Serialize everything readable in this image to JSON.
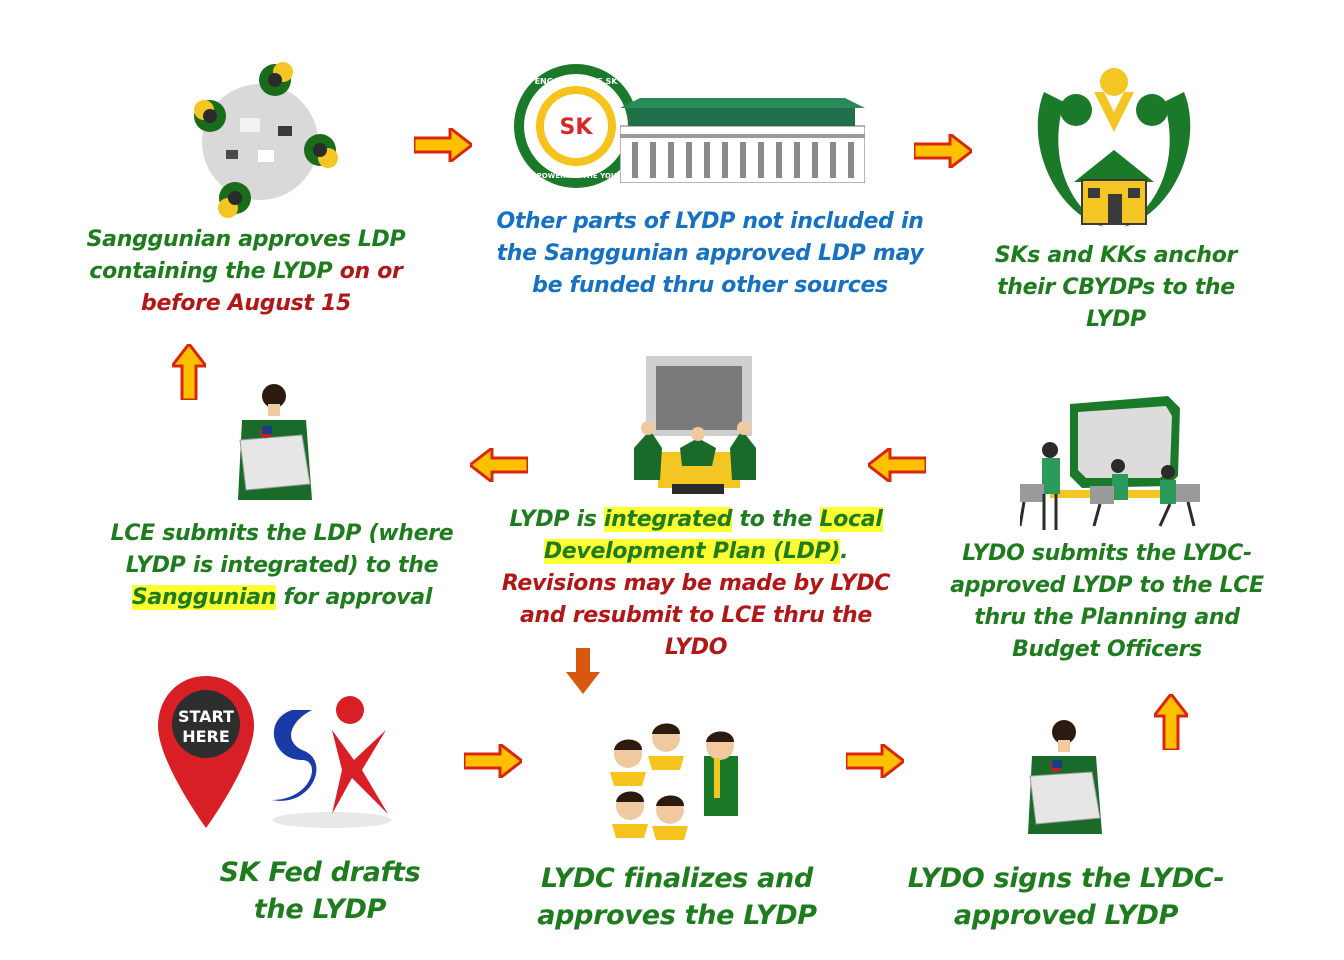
{
  "steps": {
    "sanggunian": {
      "line1": "Sanggunian approves LDP",
      "line2": "containing the LYDP",
      "line3": "on or before August 15"
    },
    "other_parts": {
      "line1": "Other parts of LYDP not included",
      "line2": "in the Sanggunian approved LDP",
      "line3": "may be funded thru other sources"
    },
    "sks_kks": {
      "line1": "SKs and KKs anchor",
      "line2": "their CBYDPs to the",
      "line3": "LYDP"
    },
    "lce_submits": {
      "line1": "LCE submits the LDP (where",
      "line2": "LYDP is integrated) to the",
      "line3_hl": "Sanggunian",
      "line3_rest": " for approval"
    },
    "integrated": {
      "l1_a": "LYDP is ",
      "l1_hl1": "integrated",
      "l1_b": " to the ",
      "l1_hl2": "Local",
      "l2_hl": "Development Plan (LDP)",
      "l2_b": ".",
      "l3": "Revisions may be made by",
      "l4": "LYDC and resubmit to LCE thru",
      "l5": "the LYDO"
    },
    "lydo_submits": {
      "line1": "LYDO submits the LYDC-",
      "line2": "approved LYDP to the LCE",
      "line3": "thru the Planning and",
      "line4": "Budget Officers"
    },
    "sk_fed": {
      "line1": "SK Fed drafts",
      "line2": "the LYDP"
    },
    "lydc_finalizes": {
      "line1": "LYDC finalizes and",
      "line2": "approves the LYDP"
    },
    "lydo_signs": {
      "line1": "LYDO signs the",
      "line2": "LYDC-approved LYDP"
    }
  },
  "logo": {
    "top_text": "ENGAGING THE SK",
    "bottom_text": "EMPOWERING THE YOUTH",
    "center_text": "SK"
  },
  "start_pin": {
    "line1": "START",
    "line2": "HERE"
  },
  "sk_logo_text": "SK",
  "colors": {
    "green": "#1e7b1e",
    "blue": "#1671c0",
    "red": "#b01818",
    "highlight": "#ffff33",
    "arrow_fill": "#ffc000",
    "arrow_edge": "#d9260f"
  }
}
